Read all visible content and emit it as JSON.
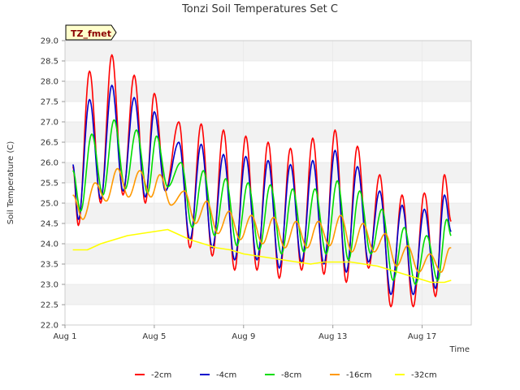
{
  "chart_data": {
    "type": "line",
    "title": "Tonzi Soil Temperatures Set C",
    "badge": "TZ_fmet",
    "xlabel": "Time",
    "ylabel": "Soil Temperature (C)",
    "ylim": [
      22.0,
      29.0
    ],
    "yticks": [
      22.0,
      22.5,
      23.0,
      23.5,
      24.0,
      24.5,
      25.0,
      25.5,
      26.0,
      26.5,
      27.0,
      27.5,
      28.0,
      28.5,
      29.0
    ],
    "ytick_labels": [
      "22.0",
      "22.5",
      "23.0",
      "23.5",
      "24.0",
      "24.5",
      "25.0",
      "25.5",
      "26.0",
      "26.5",
      "27.0",
      "27.5",
      "28.0",
      "28.5",
      "29.0"
    ],
    "xlim": [
      1.0,
      19.2
    ],
    "xticks": [
      1,
      5,
      9,
      13,
      17
    ],
    "xtick_labels": [
      "Aug 1",
      "Aug 5",
      "Aug 9",
      "Aug 13",
      "Aug 17"
    ],
    "grid": true,
    "legend_position": "bottom",
    "series": [
      {
        "name": "-2cm",
        "color": "#ff0000",
        "peaks": [
          {
            "x": 2.1,
            "y": 28.25
          },
          {
            "x": 3.1,
            "y": 28.65
          },
          {
            "x": 4.1,
            "y": 28.15
          },
          {
            "x": 5.0,
            "y": 27.7
          },
          {
            "x": 6.1,
            "y": 27.0
          },
          {
            "x": 7.1,
            "y": 26.95
          },
          {
            "x": 8.1,
            "y": 26.8
          },
          {
            "x": 9.1,
            "y": 26.65
          },
          {
            "x": 10.1,
            "y": 26.5
          },
          {
            "x": 11.1,
            "y": 26.35
          },
          {
            "x": 12.1,
            "y": 26.6
          },
          {
            "x": 13.1,
            "y": 26.8
          },
          {
            "x": 14.1,
            "y": 26.4
          },
          {
            "x": 15.1,
            "y": 25.7
          },
          {
            "x": 16.1,
            "y": 25.2
          },
          {
            "x": 17.1,
            "y": 25.25
          },
          {
            "x": 18.0,
            "y": 25.7
          }
        ],
        "troughs": [
          {
            "x": 1.6,
            "y": 24.45
          },
          {
            "x": 2.6,
            "y": 25.0
          },
          {
            "x": 3.6,
            "y": 25.2
          },
          {
            "x": 4.6,
            "y": 25.0
          },
          {
            "x": 5.5,
            "y": 25.3
          },
          {
            "x": 6.6,
            "y": 23.9
          },
          {
            "x": 7.6,
            "y": 23.7
          },
          {
            "x": 8.6,
            "y": 23.35
          },
          {
            "x": 9.6,
            "y": 23.35
          },
          {
            "x": 10.6,
            "y": 23.15
          },
          {
            "x": 11.6,
            "y": 23.35
          },
          {
            "x": 12.6,
            "y": 23.25
          },
          {
            "x": 13.6,
            "y": 23.05
          },
          {
            "x": 14.6,
            "y": 23.4
          },
          {
            "x": 15.6,
            "y": 22.45
          },
          {
            "x": 16.6,
            "y": 22.45
          },
          {
            "x": 17.6,
            "y": 22.7
          }
        ],
        "start": {
          "x": 1.35,
          "y": 25.9
        },
        "end": {
          "x": 18.3,
          "y": 24.55
        }
      },
      {
        "name": "-4cm",
        "color": "#0000cc",
        "peaks": [
          {
            "x": 2.1,
            "y": 27.55
          },
          {
            "x": 3.1,
            "y": 27.9
          },
          {
            "x": 4.1,
            "y": 27.6
          },
          {
            "x": 5.0,
            "y": 27.25
          },
          {
            "x": 6.1,
            "y": 26.5
          },
          {
            "x": 7.1,
            "y": 26.45
          },
          {
            "x": 8.1,
            "y": 26.2
          },
          {
            "x": 9.1,
            "y": 26.15
          },
          {
            "x": 10.1,
            "y": 26.05
          },
          {
            "x": 11.1,
            "y": 25.95
          },
          {
            "x": 12.1,
            "y": 26.05
          },
          {
            "x": 13.1,
            "y": 26.3
          },
          {
            "x": 14.1,
            "y": 25.9
          },
          {
            "x": 15.1,
            "y": 25.3
          },
          {
            "x": 16.1,
            "y": 24.95
          },
          {
            "x": 17.1,
            "y": 24.85
          },
          {
            "x": 18.0,
            "y": 25.2
          }
        ],
        "troughs": [
          {
            "x": 1.6,
            "y": 24.6
          },
          {
            "x": 2.6,
            "y": 25.1
          },
          {
            "x": 3.6,
            "y": 25.3
          },
          {
            "x": 4.6,
            "y": 25.15
          },
          {
            "x": 5.5,
            "y": 25.3
          },
          {
            "x": 6.6,
            "y": 24.1
          },
          {
            "x": 7.6,
            "y": 23.9
          },
          {
            "x": 8.6,
            "y": 23.6
          },
          {
            "x": 9.6,
            "y": 23.6
          },
          {
            "x": 10.6,
            "y": 23.4
          },
          {
            "x": 11.6,
            "y": 23.55
          },
          {
            "x": 12.6,
            "y": 23.5
          },
          {
            "x": 13.6,
            "y": 23.3
          },
          {
            "x": 14.6,
            "y": 23.55
          },
          {
            "x": 15.6,
            "y": 22.75
          },
          {
            "x": 16.6,
            "y": 22.75
          },
          {
            "x": 17.6,
            "y": 22.9
          }
        ],
        "start": {
          "x": 1.35,
          "y": 25.95
        },
        "end": {
          "x": 18.3,
          "y": 24.3
        }
      },
      {
        "name": "-8cm",
        "color": "#00dd00",
        "peaks": [
          {
            "x": 2.2,
            "y": 26.7
          },
          {
            "x": 3.2,
            "y": 27.05
          },
          {
            "x": 4.2,
            "y": 26.8
          },
          {
            "x": 5.1,
            "y": 26.65
          },
          {
            "x": 6.2,
            "y": 26.0
          },
          {
            "x": 7.2,
            "y": 25.8
          },
          {
            "x": 8.2,
            "y": 25.6
          },
          {
            "x": 9.2,
            "y": 25.5
          },
          {
            "x": 10.2,
            "y": 25.45
          },
          {
            "x": 11.2,
            "y": 25.35
          },
          {
            "x": 12.2,
            "y": 25.35
          },
          {
            "x": 13.2,
            "y": 25.55
          },
          {
            "x": 14.2,
            "y": 25.3
          },
          {
            "x": 15.2,
            "y": 24.85
          },
          {
            "x": 16.2,
            "y": 24.4
          },
          {
            "x": 17.2,
            "y": 24.2
          },
          {
            "x": 18.1,
            "y": 24.6
          }
        ],
        "troughs": [
          {
            "x": 1.7,
            "y": 24.8
          },
          {
            "x": 2.7,
            "y": 25.2
          },
          {
            "x": 3.7,
            "y": 25.35
          },
          {
            "x": 4.7,
            "y": 25.25
          },
          {
            "x": 5.6,
            "y": 25.4
          },
          {
            "x": 6.7,
            "y": 24.4
          },
          {
            "x": 7.7,
            "y": 24.2
          },
          {
            "x": 8.7,
            "y": 23.95
          },
          {
            "x": 9.7,
            "y": 23.85
          },
          {
            "x": 10.7,
            "y": 23.75
          },
          {
            "x": 11.7,
            "y": 23.8
          },
          {
            "x": 12.7,
            "y": 23.75
          },
          {
            "x": 13.7,
            "y": 23.6
          },
          {
            "x": 14.7,
            "y": 23.75
          },
          {
            "x": 15.7,
            "y": 23.1
          },
          {
            "x": 16.7,
            "y": 23.0
          },
          {
            "x": 17.7,
            "y": 23.1
          }
        ],
        "start": {
          "x": 1.35,
          "y": 25.8
        },
        "end": {
          "x": 18.3,
          "y": 24.2
        }
      },
      {
        "name": "-16cm",
        "color": "#ff9900",
        "peaks": [
          {
            "x": 2.35,
            "y": 25.5
          },
          {
            "x": 3.35,
            "y": 25.85
          },
          {
            "x": 4.35,
            "y": 25.8
          },
          {
            "x": 5.25,
            "y": 25.7
          },
          {
            "x": 6.35,
            "y": 25.3
          },
          {
            "x": 7.35,
            "y": 25.05
          },
          {
            "x": 8.35,
            "y": 24.8
          },
          {
            "x": 9.35,
            "y": 24.7
          },
          {
            "x": 10.35,
            "y": 24.65
          },
          {
            "x": 11.35,
            "y": 24.55
          },
          {
            "x": 12.35,
            "y": 24.55
          },
          {
            "x": 13.35,
            "y": 24.7
          },
          {
            "x": 14.35,
            "y": 24.5
          },
          {
            "x": 15.35,
            "y": 24.25
          },
          {
            "x": 16.35,
            "y": 23.95
          },
          {
            "x": 17.35,
            "y": 23.75
          },
          {
            "x": 18.25,
            "y": 23.9
          }
        ],
        "troughs": [
          {
            "x": 1.8,
            "y": 24.6
          },
          {
            "x": 2.85,
            "y": 25.05
          },
          {
            "x": 3.85,
            "y": 25.15
          },
          {
            "x": 4.85,
            "y": 25.15
          },
          {
            "x": 5.75,
            "y": 24.95
          },
          {
            "x": 6.85,
            "y": 24.5
          },
          {
            "x": 7.85,
            "y": 24.25
          },
          {
            "x": 8.85,
            "y": 24.1
          },
          {
            "x": 9.85,
            "y": 24.0
          },
          {
            "x": 10.85,
            "y": 23.9
          },
          {
            "x": 11.85,
            "y": 23.9
          },
          {
            "x": 12.85,
            "y": 23.95
          },
          {
            "x": 13.85,
            "y": 23.8
          },
          {
            "x": 14.85,
            "y": 23.8
          },
          {
            "x": 15.85,
            "y": 23.45
          },
          {
            "x": 16.85,
            "y": 23.3
          },
          {
            "x": 17.85,
            "y": 23.3
          }
        ],
        "start": {
          "x": 1.35,
          "y": 25.2
        },
        "end": {
          "x": 18.3,
          "y": 23.9
        }
      },
      {
        "name": "-32cm",
        "color": "#ffff00",
        "points": [
          {
            "x": 1.35,
            "y": 23.85
          },
          {
            "x": 2.0,
            "y": 23.85
          },
          {
            "x": 2.6,
            "y": 24.0
          },
          {
            "x": 3.2,
            "y": 24.1
          },
          {
            "x": 3.8,
            "y": 24.2
          },
          {
            "x": 4.4,
            "y": 24.25
          },
          {
            "x": 5.0,
            "y": 24.3
          },
          {
            "x": 5.6,
            "y": 24.35
          },
          {
            "x": 6.0,
            "y": 24.25
          },
          {
            "x": 6.6,
            "y": 24.1
          },
          {
            "x": 7.2,
            "y": 24.0
          },
          {
            "x": 7.8,
            "y": 23.9
          },
          {
            "x": 8.4,
            "y": 23.85
          },
          {
            "x": 9.0,
            "y": 23.75
          },
          {
            "x": 9.6,
            "y": 23.7
          },
          {
            "x": 10.2,
            "y": 23.65
          },
          {
            "x": 10.8,
            "y": 23.6
          },
          {
            "x": 11.4,
            "y": 23.55
          },
          {
            "x": 12.0,
            "y": 23.5
          },
          {
            "x": 12.6,
            "y": 23.55
          },
          {
            "x": 13.2,
            "y": 23.55
          },
          {
            "x": 13.8,
            "y": 23.55
          },
          {
            "x": 14.4,
            "y": 23.5
          },
          {
            "x": 15.0,
            "y": 23.45
          },
          {
            "x": 15.6,
            "y": 23.35
          },
          {
            "x": 16.2,
            "y": 23.25
          },
          {
            "x": 16.8,
            "y": 23.15
          },
          {
            "x": 17.4,
            "y": 23.05
          },
          {
            "x": 18.0,
            "y": 23.05
          },
          {
            "x": 18.3,
            "y": 23.1
          }
        ]
      }
    ]
  }
}
